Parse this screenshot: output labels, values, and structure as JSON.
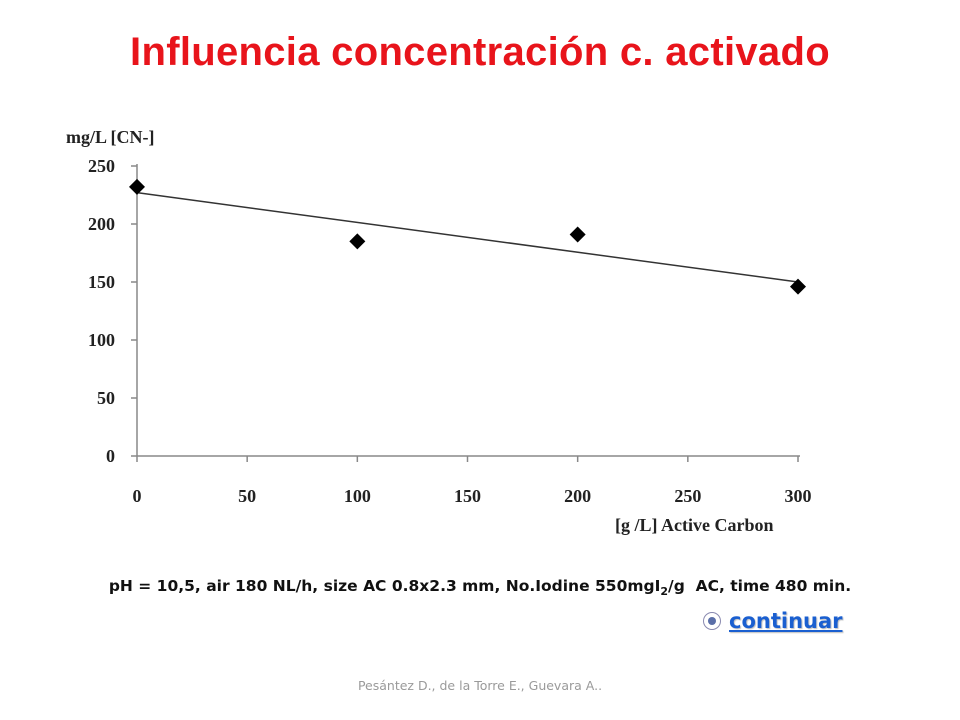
{
  "title": "Influencia concentración c. activado",
  "chart_data": {
    "type": "scatter",
    "ylabel": "mg/L [CN-]",
    "xlabel": "[g /L] Active Carbon",
    "xlim": [
      0,
      300
    ],
    "ylim": [
      0,
      250
    ],
    "x_ticks": [
      0,
      50,
      100,
      150,
      200,
      250,
      300
    ],
    "y_ticks": [
      0,
      50,
      100,
      150,
      200,
      250
    ],
    "grid": false,
    "series": [
      {
        "points": [
          {
            "x": 0,
            "y": 232
          },
          {
            "x": 100,
            "y": 185
          },
          {
            "x": 200,
            "y": 191
          },
          {
            "x": 300,
            "y": 146
          }
        ],
        "marker": "diamond",
        "color": "#000000"
      }
    ],
    "trendline": {
      "type": "linear",
      "x0": 0,
      "y0": 227,
      "x1": 300,
      "y1": 150,
      "color": "#333333"
    }
  },
  "caption": {
    "prefix": "pH = 10,5, air 180 NL/h, size AC 0.8x2.3 mm, No.Iodine 550mgI",
    "subscript": "2",
    "suffix": "/g  AC, time 480 min."
  },
  "link": {
    "label": "continuar"
  },
  "footer": "Pesántez D., de la Torre E., Guevara A.."
}
